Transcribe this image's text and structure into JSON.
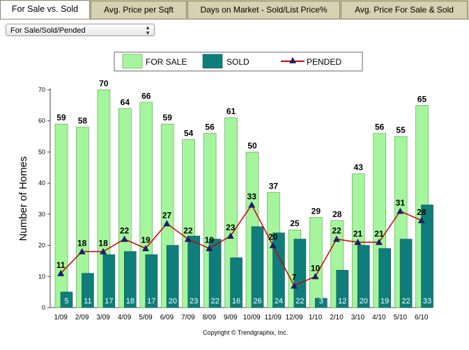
{
  "tabs": [
    {
      "label": "For Sale vs. Sold",
      "active": true
    },
    {
      "label": "Avg. Price per Sqft",
      "active": false
    },
    {
      "label": "Days on Market - Sold/List Price%",
      "active": false
    },
    {
      "label": "Avg. Price For Sale & Sold",
      "active": false
    }
  ],
  "filter": {
    "selected": "For Sale/Sold/Pended"
  },
  "copyright": "Copyright © Trendgraphix, Inc.",
  "colors": {
    "for_sale": "#a4f59b",
    "sold": "#0f7e7a",
    "pended_line": "#cc0000",
    "pended_marker": "#1e1e6e"
  },
  "chart_data": {
    "type": "bar",
    "title": "",
    "xlabel": "",
    "ylabel": "Number of Homes",
    "ylim": [
      0,
      70
    ],
    "yticks": [
      0,
      10,
      20,
      30,
      40,
      50,
      60,
      70
    ],
    "grid": false,
    "legend_position": "top",
    "categories": [
      "1/09",
      "2/09",
      "3/09",
      "4/09",
      "5/09",
      "6/09",
      "7/09",
      "8/09",
      "9/09",
      "10/09",
      "11/09",
      "12/09",
      "1/10",
      "2/10",
      "3/10",
      "4/10",
      "5/10",
      "6/10"
    ],
    "series": [
      {
        "name": "FOR SALE",
        "kind": "bar",
        "values": [
          59,
          58,
          70,
          64,
          66,
          59,
          54,
          56,
          61,
          50,
          37,
          25,
          29,
          28,
          43,
          56,
          55,
          65
        ]
      },
      {
        "name": "SOLD",
        "kind": "bar",
        "values": [
          5,
          11,
          17,
          18,
          17,
          20,
          23,
          22,
          16,
          26,
          24,
          22,
          3,
          12,
          20,
          19,
          22,
          33
        ]
      },
      {
        "name": "PENDED",
        "kind": "line",
        "values": [
          11,
          18,
          18,
          22,
          19,
          27,
          22,
          19,
          23,
          33,
          20,
          7,
          10,
          22,
          21,
          21,
          31,
          28
        ]
      }
    ]
  }
}
